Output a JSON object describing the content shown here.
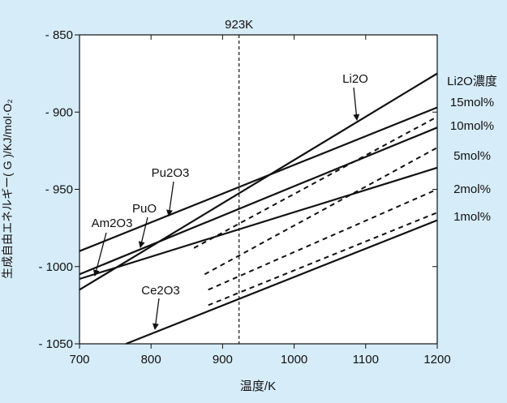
{
  "colors": {
    "background": "#d6ecf9",
    "plot_area": "#ffffff",
    "ink": "#111111"
  },
  "chart_data": {
    "type": "line",
    "xlabel": "温度/K",
    "ylabel": "生成自由エネルギー(  G )/KJ/mol·O₂",
    "xlim": [
      700,
      1200
    ],
    "ylim": [
      -1050,
      -850
    ],
    "xticks": [
      700,
      800,
      900,
      1000,
      1100,
      1200
    ],
    "xtick_labels": [
      "700",
      "800",
      "900",
      "1000",
      "1100",
      "1200"
    ],
    "yticks": [
      -850,
      -900,
      -950,
      -1000,
      -1050
    ],
    "ytick_labels": [
      "- 850",
      "- 900",
      "- 950",
      "- 1000",
      "- 1050"
    ],
    "grid": false,
    "reference_line": {
      "x": 923,
      "label": "923K",
      "style": "dashed"
    },
    "legend_title": "Li2O濃度",
    "series": [
      {
        "name": "Li2O",
        "style": "solid",
        "x": [
          700,
          1200
        ],
        "y": [
          -1015,
          -875
        ]
      },
      {
        "name": "Pu2O3",
        "style": "solid",
        "x": [
          700,
          1200
        ],
        "y": [
          -990,
          -897
        ]
      },
      {
        "name": "PuO",
        "style": "solid",
        "x": [
          700,
          1200
        ],
        "y": [
          -1005,
          -910
        ]
      },
      {
        "name": "Am2O3",
        "style": "solid",
        "x": [
          700,
          1200
        ],
        "y": [
          -1008,
          -936
        ]
      },
      {
        "name": "Ce2O3",
        "style": "solid",
        "x": [
          765,
          1200
        ],
        "y": [
          -1050,
          -970
        ]
      },
      {
        "name": "15mol%",
        "style": "dashed",
        "x": [
          860,
          1200
        ],
        "y": [
          -988,
          -903
        ]
      },
      {
        "name": "5mol%",
        "style": "dashed",
        "x": [
          875,
          1200
        ],
        "y": [
          -1005,
          -923
        ]
      },
      {
        "name": "2mol%",
        "style": "dashed",
        "x": [
          880,
          1200
        ],
        "y": [
          -1015,
          -950
        ]
      },
      {
        "name": "1mol%",
        "style": "dashed",
        "x": [
          880,
          1200
        ],
        "y": [
          -1025,
          -965
        ]
      }
    ],
    "annotations": [
      {
        "text": "Li2O",
        "target_series": "Li2O"
      },
      {
        "text": "Pu2O3",
        "target_series": "Pu2O3"
      },
      {
        "text": "PuO",
        "target_series": "PuO"
      },
      {
        "text": "Am2O3",
        "target_series": "Am2O3"
      },
      {
        "text": "Ce2O3",
        "target_series": "Ce2O3"
      }
    ],
    "right_labels": [
      "Li2O濃度",
      "15mol%",
      "10mol%",
      "5mol%",
      "2mol%",
      "1mol%"
    ]
  }
}
